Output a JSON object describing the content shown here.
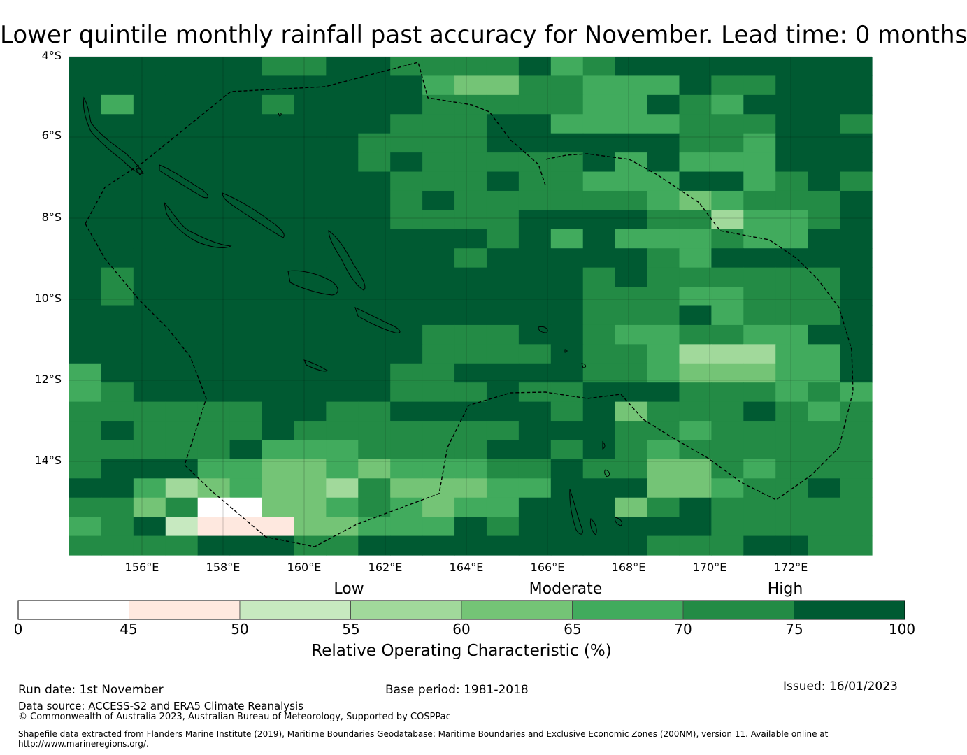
{
  "title": "Lower quintile monthly rainfall past accuracy for November. Lead time: 0 months",
  "map": {
    "lat_ticks": [
      "4°S",
      "6°S",
      "8°S",
      "10°S",
      "12°S",
      "14°S"
    ],
    "lon_ticks": [
      "156°E",
      "158°E",
      "160°E",
      "162°E",
      "164°E",
      "166°E",
      "168°E",
      "170°E",
      "172°E"
    ],
    "lon_range": [
      154.2,
      174
    ],
    "lat_range": [
      -4,
      -16.3
    ]
  },
  "colorbar": {
    "categories": [
      "Low",
      "Moderate",
      "High"
    ],
    "ticks": [
      "0",
      "45",
      "50",
      "55",
      "60",
      "65",
      "70",
      "75",
      "100"
    ],
    "colors": [
      "#ffffff",
      "#fee8df",
      "#c7e9c0",
      "#a1d99b",
      "#74c476",
      "#41ab5d",
      "#238b45",
      "#005a32"
    ],
    "title": "Relative Operating Characteristic (%)"
  },
  "footer": {
    "run_date": "Run date: 1st November",
    "base_period": "Base period: 1981-2018",
    "issued": "Issued: 16/01/2023",
    "data_source": "Data source: ACCESS-S2 and ERA5 Climate Reanalysis",
    "copyright": "© Commonwealth of Australia 2023, Australian Bureau of Meteorology, Supported by COSPPac",
    "shapefile_1": "Shapefile data extracted from Flanders Marine Institute (2019), Maritime Boundaries Geodatabase: Maritime Boundaries and Exclusive Economic Zones (200NM), version 11. Available online at",
    "shapefile_2": "http://www.marineregions.org/."
  },
  "grid_rows": [
    "7777776677666675677777777",
    "7777777777754466555766777",
    "7577776777766666557657777",
    "7777777777666775555666776",
    "7777777776666777777665777",
    "7777777776766666757555777",
    "7777777777666766555775676",
    "7777777777676666665456667",
    "7777777777666677776635567",
    "7777777777777675755565577",
    "7777777777776777776577777",
    "7677777777777777676666667",
    "7677777777777777666556667",
    "7777777777777777666756667",
    "7777777777766677655665577",
    "7777777777766667665333557",
    "5777777777667777665444557",
    "5677777777666766777666565",
    "6666667766777776746667656",
    "6766667666666677766566666",
    "6666675556666776765666666",
    "6777554454555667664465666",
    "7753454436444557774456676",
    "6646004456545577746766666",
    "5672111445557677777766666",
    "6666777667777777776667766"
  ]
}
